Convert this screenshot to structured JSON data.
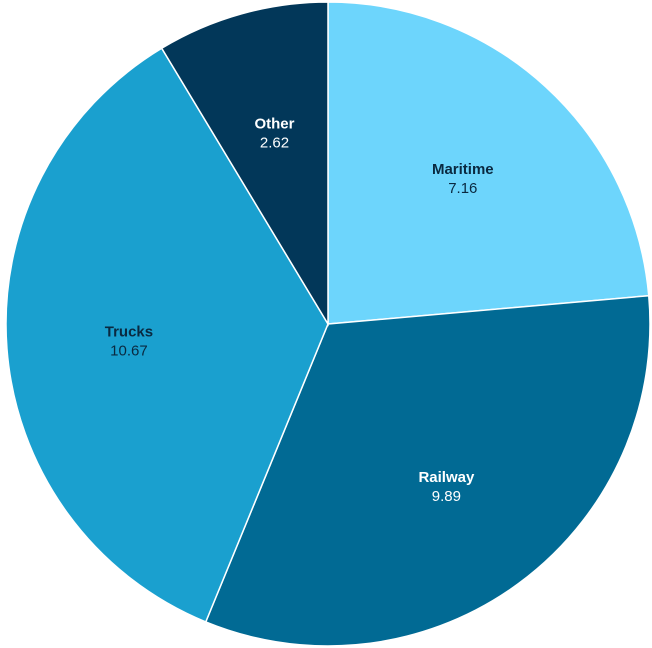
{
  "chart_data": {
    "type": "pie",
    "title": "",
    "slices": [
      {
        "label": "Maritime",
        "value": 7.16,
        "color": "#6dd5fc",
        "label_color": "#0a2940",
        "value_color": "#0a2940"
      },
      {
        "label": "Railway",
        "value": 9.89,
        "color": "#016a94",
        "label_color": "#ffffff",
        "value_color": "#ffffff"
      },
      {
        "label": "Trucks",
        "value": 10.67,
        "color": "#1aa0cf",
        "label_color": "#0a2940",
        "value_color": "#0a2940"
      },
      {
        "label": "Other",
        "value": 2.62,
        "color": "#023759",
        "label_color": "#ffffff",
        "value_color": "#ffffff"
      }
    ],
    "start_angle_deg": 0,
    "direction": "clockwise",
    "legend": "none",
    "slice_border_color": "#ffffff"
  }
}
